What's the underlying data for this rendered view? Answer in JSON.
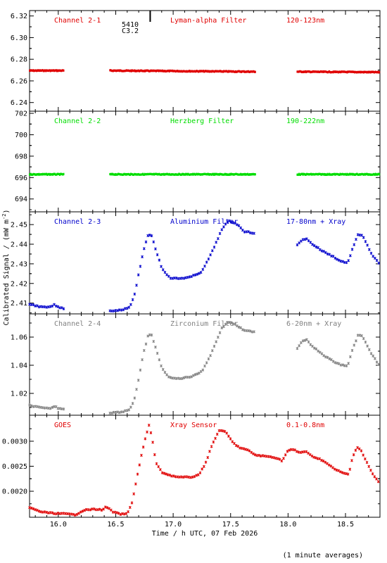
{
  "top_marker": {
    "label_1": "5410",
    "label_2": "C3.2"
  },
  "y_axis_label": "Calibrated Signal / (mW m",
  "y_axis_label_sup": "-2",
  "y_axis_label_end": ")",
  "x_axis_label": "Time / h UTC, 07 Feb 2026",
  "footnote": "(1 minute averages)",
  "colors": {
    "red": "#e00000",
    "green": "#00dd00",
    "blue": "#0000cc",
    "gray": "#808080"
  },
  "chart_data": [
    {
      "type": "scatter",
      "name": "Channel 2-1",
      "labels": [
        "Channel 2-1",
        "Lyman-alpha Filter",
        "120-123nm"
      ],
      "color": "#e00000",
      "xlim": [
        15.75,
        18.8
      ],
      "ylim": [
        6.232,
        6.325
      ],
      "yticks": [
        6.24,
        6.26,
        6.28,
        6.3,
        6.32
      ],
      "ytick_labels": [
        "6.24",
        "6.26",
        "6.28",
        "6.30",
        "6.32"
      ],
      "segments": [
        {
          "x_start": 15.75,
          "x_end": 16.05,
          "y_start": 6.2695,
          "y_end": 6.2695
        },
        {
          "x_start": 16.45,
          "x_end": 17.72,
          "y_start": 6.2695,
          "y_end": 6.2685
        },
        {
          "x_start": 18.08,
          "x_end": 18.8,
          "y_start": 6.2685,
          "y_end": 6.268
        }
      ]
    },
    {
      "type": "scatter",
      "name": "Channel 2-2",
      "labels": [
        "Channel 2-2",
        "Herzberg Filter",
        "190-222nm"
      ],
      "color": "#00dd00",
      "xlim": [
        15.75,
        18.8
      ],
      "ylim": [
        692.8,
        702.2
      ],
      "yticks": [
        694,
        696,
        698,
        700,
        702
      ],
      "ytick_labels": [
        "694",
        "696",
        "698",
        "700",
        "702"
      ],
      "segments": [
        {
          "x_start": 15.75,
          "x_end": 16.05,
          "y_start": 696.3,
          "y_end": 696.3
        },
        {
          "x_start": 16.45,
          "x_end": 17.72,
          "y_start": 696.3,
          "y_end": 696.3
        },
        {
          "x_start": 18.08,
          "x_end": 18.8,
          "y_start": 696.3,
          "y_end": 696.3
        }
      ]
    },
    {
      "type": "scatter",
      "name": "Channel 2-3",
      "labels": [
        "Channel 2-3",
        "Aluminium Filter",
        "17-80nm + Xray"
      ],
      "color": "#0000cc",
      "xlim": [
        15.75,
        18.8
      ],
      "ylim": [
        2.4045,
        2.4565
      ],
      "yticks": [
        2.41,
        2.42,
        2.43,
        2.44,
        2.45
      ],
      "ytick_labels": [
        "2.41",
        "2.42",
        "2.43",
        "2.44",
        "2.45"
      ],
      "segments": [
        {
          "keys": [
            [
              15.75,
              2.4095
            ],
            [
              15.85,
              2.408
            ],
            [
              15.92,
              2.4078
            ],
            [
              15.97,
              2.4092
            ],
            [
              16.0,
              2.4078
            ],
            [
              16.05,
              2.4073
            ]
          ]
        },
        {
          "keys": [
            [
              16.45,
              2.406
            ],
            [
              16.55,
              2.4065
            ],
            [
              16.62,
              2.408
            ],
            [
              16.66,
              2.413
            ],
            [
              16.7,
              2.425
            ],
            [
              16.74,
              2.436
            ],
            [
              16.78,
              2.4445
            ],
            [
              16.81,
              2.445
            ],
            [
              16.85,
              2.437
            ],
            [
              16.9,
              2.428
            ],
            [
              16.97,
              2.4228
            ],
            [
              17.05,
              2.4225
            ],
            [
              17.15,
              2.4232
            ],
            [
              17.25,
              2.426
            ],
            [
              17.33,
              2.435
            ],
            [
              17.42,
              2.447
            ],
            [
              17.48,
              2.452
            ],
            [
              17.55,
              2.4505
            ],
            [
              17.62,
              2.4465
            ],
            [
              17.72,
              2.4455
            ]
          ]
        },
        {
          "keys": [
            [
              18.08,
              2.4395
            ],
            [
              18.12,
              2.442
            ],
            [
              18.16,
              2.443
            ],
            [
              18.2,
              2.4405
            ],
            [
              18.3,
              2.4365
            ],
            [
              18.4,
              2.4335
            ],
            [
              18.45,
              2.4315
            ],
            [
              18.52,
              2.4305
            ],
            [
              18.56,
              2.4375
            ],
            [
              18.61,
              2.445
            ],
            [
              18.65,
              2.4445
            ],
            [
              18.72,
              2.4355
            ],
            [
              18.8,
              2.4295
            ]
          ]
        }
      ]
    },
    {
      "type": "scatter",
      "name": "Channel 2-4",
      "labels": [
        "Channel 2-4",
        "Zirconium Filter",
        "6-20nm + Xray"
      ],
      "color": "#808080",
      "xlim": [
        15.75,
        18.8
      ],
      "ylim": [
        1.0045,
        1.0765
      ],
      "yticks": [
        1.02,
        1.04,
        1.06
      ],
      "ytick_labels": [
        "1.02",
        "1.04",
        "1.06"
      ],
      "segments": [
        {
          "keys": [
            [
              15.75,
              1.0115
            ],
            [
              15.85,
              1.0098
            ],
            [
              15.92,
              1.0092
            ],
            [
              15.97,
              1.0108
            ],
            [
              16.0,
              1.0095
            ],
            [
              16.05,
              1.009
            ]
          ]
        },
        {
          "keys": [
            [
              16.45,
              1.0062
            ],
            [
              16.55,
              1.0068
            ],
            [
              16.62,
              1.0085
            ],
            [
              16.66,
              1.015
            ],
            [
              16.7,
              1.03
            ],
            [
              16.74,
              1.048
            ],
            [
              16.78,
              1.0605
            ],
            [
              16.81,
              1.062
            ],
            [
              16.85,
              1.052
            ],
            [
              16.9,
              1.038
            ],
            [
              16.97,
              1.031
            ],
            [
              17.05,
              1.0305
            ],
            [
              17.15,
              1.0318
            ],
            [
              17.25,
              1.0355
            ],
            [
              17.33,
              1.048
            ],
            [
              17.42,
              1.066
            ],
            [
              17.48,
              1.071
            ],
            [
              17.55,
              1.0685
            ],
            [
              17.62,
              1.0645
            ],
            [
              17.72,
              1.0638
            ]
          ]
        },
        {
          "keys": [
            [
              18.08,
              1.052
            ],
            [
              18.12,
              1.057
            ],
            [
              18.16,
              1.0585
            ],
            [
              18.2,
              1.0545
            ],
            [
              18.3,
              1.0475
            ],
            [
              18.4,
              1.0425
            ],
            [
              18.45,
              1.0405
            ],
            [
              18.52,
              1.0395
            ],
            [
              18.56,
              1.051
            ],
            [
              18.61,
              1.0615
            ],
            [
              18.65,
              1.0605
            ],
            [
              18.72,
              1.0485
            ],
            [
              18.8,
              1.0395
            ]
          ]
        }
      ]
    },
    {
      "type": "scatter",
      "name": "GOES",
      "labels": [
        "GOES",
        "Xray Sensor",
        "0.1-0.8nm"
      ],
      "color": "#e00000",
      "xlim": [
        15.75,
        18.8
      ],
      "ylim": [
        0.00148,
        0.00352
      ],
      "yticks": [
        0.002,
        0.0025,
        0.003
      ],
      "ytick_labels": [
        "0.0020",
        "0.0025",
        "0.0030"
      ],
      "segments": [
        {
          "keys": [
            [
              15.75,
              0.00167
            ],
            [
              15.85,
              0.00159
            ],
            [
              15.95,
              0.00156
            ],
            [
              16.05,
              0.00155
            ],
            [
              16.15,
              0.00153
            ],
            [
              16.22,
              0.00162
            ],
            [
              16.3,
              0.00164
            ],
            [
              16.38,
              0.00163
            ],
            [
              16.42,
              0.00169
            ],
            [
              16.48,
              0.00158
            ],
            [
              16.55,
              0.00154
            ],
            [
              16.6,
              0.00155
            ],
            [
              16.64,
              0.00175
            ],
            [
              16.68,
              0.00222
            ],
            [
              16.72,
              0.00268
            ],
            [
              16.76,
              0.00308
            ],
            [
              16.79,
              0.00332
            ],
            [
              16.82,
              0.00302
            ],
            [
              16.85,
              0.00257
            ],
            [
              16.9,
              0.00238
            ],
            [
              16.97,
              0.00232
            ],
            [
              17.05,
              0.00228
            ],
            [
              17.15,
              0.00228
            ],
            [
              17.22,
              0.00232
            ],
            [
              17.28,
              0.00255
            ],
            [
              17.34,
              0.00293
            ],
            [
              17.4,
              0.00322
            ],
            [
              17.46,
              0.00318
            ],
            [
              17.52,
              0.00297
            ],
            [
              17.58,
              0.00287
            ],
            [
              17.65,
              0.00282
            ],
            [
              17.72,
              0.00272
            ],
            [
              17.8,
              0.0027
            ],
            [
              17.88,
              0.00268
            ],
            [
              17.95,
              0.00261
            ],
            [
              18.0,
              0.00282
            ],
            [
              18.05,
              0.00283
            ],
            [
              18.1,
              0.00277
            ],
            [
              18.15,
              0.0028
            ],
            [
              18.2,
              0.00271
            ],
            [
              18.3,
              0.00262
            ],
            [
              18.4,
              0.00245
            ],
            [
              18.48,
              0.00236
            ],
            [
              18.53,
              0.00234
            ],
            [
              18.56,
              0.00268
            ],
            [
              18.6,
              0.00288
            ],
            [
              18.63,
              0.00284
            ],
            [
              18.68,
              0.0026
            ],
            [
              18.74,
              0.00233
            ],
            [
              18.8,
              0.00215
            ]
          ]
        }
      ]
    }
  ],
  "x_axis": {
    "xlim": [
      15.75,
      18.8
    ],
    "ticks": [
      16.0,
      16.5,
      17.0,
      17.5,
      18.0,
      18.5
    ],
    "tick_labels": [
      "16.0",
      "16.5",
      "17.0",
      "17.5",
      "18.0",
      "18.5"
    ],
    "minor_step": 0.1,
    "marker_x": 16.8
  }
}
